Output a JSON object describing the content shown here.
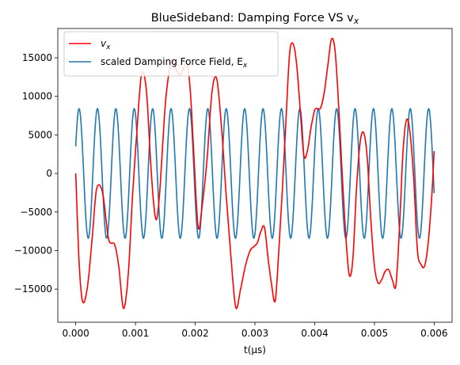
{
  "chart_data": {
    "type": "line",
    "title": "BlueSideband: Damping Force VS v",
    "title_subscript": "x",
    "xlabel": "t(μs)",
    "ylabel": "",
    "xlim": [
      -0.0003,
      0.0063
    ],
    "ylim": [
      -19300,
      18800
    ],
    "xticks": [
      0.0,
      0.001,
      0.002,
      0.003,
      0.004,
      0.005,
      0.006
    ],
    "xtick_labels": [
      "0.000",
      "0.001",
      "0.002",
      "0.003",
      "0.004",
      "0.005",
      "0.006"
    ],
    "yticks": [
      -15000,
      -10000,
      -5000,
      0,
      5000,
      10000,
      15000
    ],
    "ytick_labels": [
      "−15000",
      "−10000",
      "−5000",
      "0",
      "5000",
      "10000",
      "15000"
    ],
    "legend_position": "upper-left",
    "series": [
      {
        "name": "v",
        "name_subscript": "x",
        "color": "#ff0000",
        "x": [
          0.0,
          6e-05,
          0.00012,
          0.0002,
          0.00028,
          0.00035,
          0.00045,
          0.00055,
          0.00065,
          0.00072,
          0.0008,
          0.00088,
          0.00095,
          0.00102,
          0.0011,
          0.00118,
          0.00125,
          0.0013,
          0.00135,
          0.0014,
          0.00145,
          0.0015,
          0.00156,
          0.00162,
          0.00168,
          0.00174,
          0.0018,
          0.00186,
          0.00192,
          0.00198,
          0.00205,
          0.00212,
          0.0022,
          0.00228,
          0.00236,
          0.00244,
          0.00252,
          0.0026,
          0.00268,
          0.00276,
          0.00284,
          0.00292,
          0.00298,
          0.00304,
          0.0031,
          0.00316,
          0.00322,
          0.00328,
          0.00334,
          0.0034,
          0.00346,
          0.00352,
          0.00358,
          0.00364,
          0.0037,
          0.00376,
          0.00382,
          0.00388,
          0.00394,
          0.004,
          0.00405,
          0.0041,
          0.00416,
          0.00422,
          0.00428,
          0.00434,
          0.0044,
          0.00446,
          0.00452,
          0.00458,
          0.00464,
          0.0047,
          0.00476,
          0.00482,
          0.00488,
          0.00494,
          0.005,
          0.00506,
          0.00512,
          0.00518,
          0.00524,
          0.0053,
          0.00536,
          0.00542,
          0.00548,
          0.00554,
          0.0056,
          0.00566,
          0.00572,
          0.00578,
          0.00584,
          0.0059,
          0.00596,
          0.006
        ],
        "y": [
          0,
          -12000,
          -16700,
          -14500,
          -8000,
          -2000,
          -2500,
          -8500,
          -9200,
          -12000,
          -17500,
          -13000,
          -3000,
          5000,
          12800,
          11000,
          2000,
          -3500,
          -6000,
          -3000,
          3000,
          9000,
          13000,
          14800,
          13500,
          12800,
          13500,
          14500,
          10500,
          2000,
          -7000,
          -4000,
          2000,
          10500,
          12300,
          6000,
          -3000,
          -11000,
          -17400,
          -15000,
          -12000,
          -10000,
          -9500,
          -9000,
          -7500,
          -7000,
          -11000,
          -14500,
          -16500,
          -10000,
          -2000,
          7000,
          15500,
          16800,
          14000,
          8000,
          2300,
          3000,
          6000,
          8200,
          8400,
          8500,
          10500,
          14000,
          17400,
          16000,
          9000,
          0,
          -8000,
          -13200,
          -11000,
          -2000,
          4000,
          5300,
          2000,
          -6000,
          -12000,
          -14200,
          -13800,
          -12700,
          -12500,
          -13800,
          -14500,
          -7000,
          3000,
          7000,
          5000,
          -1000,
          -10000,
          -11800,
          -12000,
          -9000,
          -3000,
          2900
        ]
      },
      {
        "name": "scaled Damping Force Field, E",
        "name_subscript": "x",
        "color": "#1f77b4",
        "amplitude": 8400,
        "period": 0.000308,
        "phase": 0.432,
        "x_start": 0.0,
        "x_end": 0.006
      }
    ]
  }
}
